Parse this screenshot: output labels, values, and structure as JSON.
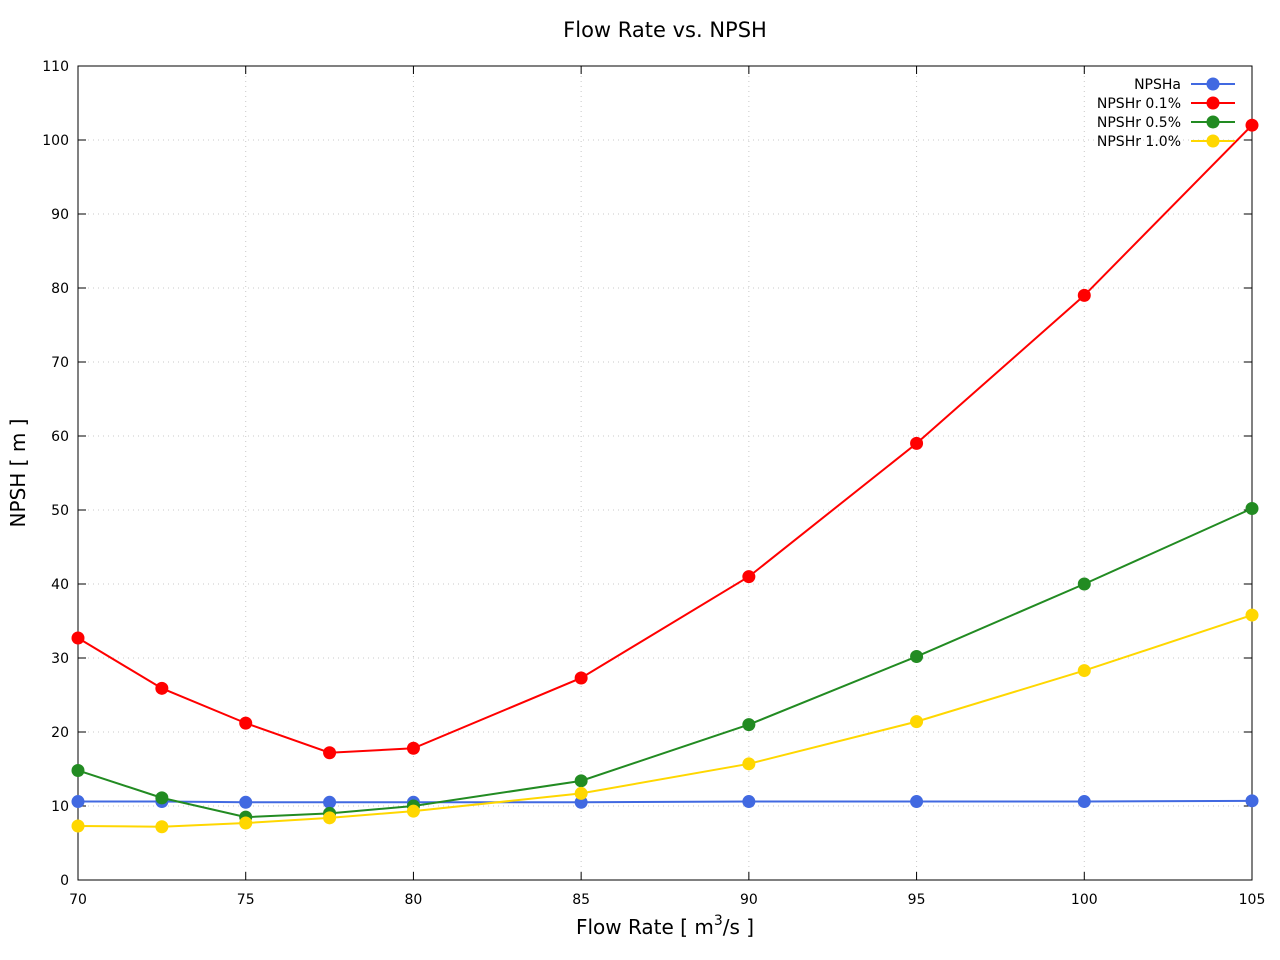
{
  "chart_data": {
    "type": "line",
    "title": "Flow Rate vs. NPSH",
    "xlabel": "Flow Rate [ m",
    "xlabel_sup": "3",
    "xlabel_suffix": "/s ]",
    "ylabel": "NPSH [ m ]",
    "xlim": [
      70,
      105
    ],
    "ylim": [
      0,
      110
    ],
    "xticks": [
      70,
      75,
      80,
      85,
      90,
      95,
      100,
      105
    ],
    "yticks": [
      0,
      10,
      20,
      30,
      40,
      50,
      60,
      70,
      80,
      90,
      100,
      110
    ],
    "grid": true,
    "legend_position": "top-right",
    "x": [
      70,
      72.5,
      75,
      77.5,
      80,
      85,
      90,
      95,
      100,
      105
    ],
    "series": [
      {
        "name": "NPSHa",
        "color": "#4169e1",
        "values": [
          10.6,
          10.6,
          10.5,
          10.5,
          10.5,
          10.5,
          10.6,
          10.6,
          10.6,
          10.7
        ]
      },
      {
        "name": "NPSHr 0.1%",
        "color": "#ff0000",
        "values": [
          32.7,
          25.9,
          21.2,
          17.2,
          17.8,
          27.3,
          41.0,
          59.0,
          79.0,
          102.0
        ]
      },
      {
        "name": "NPSHr 0.5%",
        "color": "#228b22",
        "values": [
          14.8,
          11.1,
          8.5,
          9.0,
          10.0,
          13.4,
          21.0,
          30.2,
          40.0,
          50.2
        ]
      },
      {
        "name": "NPSHr 1.0%",
        "color": "#ffd700",
        "values": [
          7.3,
          7.2,
          7.7,
          8.4,
          9.3,
          11.7,
          15.7,
          21.4,
          28.3,
          35.8
        ]
      }
    ]
  }
}
